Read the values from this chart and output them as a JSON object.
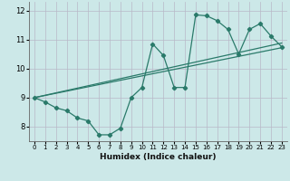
{
  "xlabel": "Humidex (Indice chaleur)",
  "background_color": "#cce8e8",
  "grid_color": "#b8b8c8",
  "line_color": "#2a7a6a",
  "xlim": [
    -0.5,
    23.5
  ],
  "ylim": [
    7.5,
    12.3
  ],
  "yticks": [
    8,
    9,
    10,
    11,
    12
  ],
  "xticks": [
    0,
    1,
    2,
    3,
    4,
    5,
    6,
    7,
    8,
    9,
    10,
    11,
    12,
    13,
    14,
    15,
    16,
    17,
    18,
    19,
    20,
    21,
    22,
    23
  ],
  "curve1_x": [
    0,
    1,
    2,
    3,
    4,
    5,
    6,
    7,
    8,
    9,
    10,
    11,
    12,
    13,
    14,
    15,
    16,
    17,
    18,
    19,
    20,
    21,
    22,
    23
  ],
  "curve1_y": [
    9.0,
    8.85,
    8.65,
    8.55,
    8.3,
    8.2,
    7.72,
    7.72,
    7.95,
    9.0,
    9.35,
    10.85,
    10.45,
    9.35,
    9.35,
    11.85,
    11.82,
    11.65,
    11.35,
    10.5,
    11.35,
    11.55,
    11.12,
    10.75
  ],
  "curve2_x": [
    0,
    23
  ],
  "curve2_y": [
    9.0,
    10.72
  ],
  "curve3_x": [
    0,
    23
  ],
  "curve3_y": [
    9.0,
    10.88
  ]
}
